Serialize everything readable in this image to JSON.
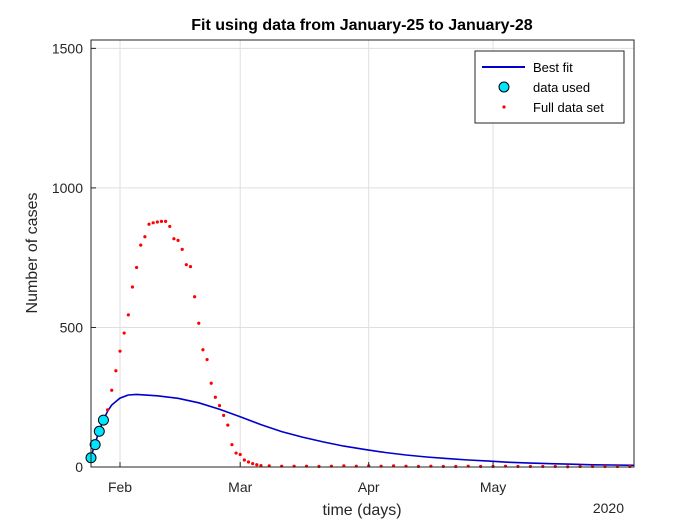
{
  "chart_data": {
    "type": "line",
    "title": "Fit using data from January-25 to January-28",
    "xlabel": "time (days)",
    "ylabel": "Number of cases",
    "year_label": "2020",
    "xlim": [
      "2020-01-25",
      "2020-06-04"
    ],
    "ylim": [
      0,
      1530
    ],
    "x_ticks": [
      {
        "date": "2020-02-01",
        "label": "Feb"
      },
      {
        "date": "2020-03-01",
        "label": "Mar"
      },
      {
        "date": "2020-04-01",
        "label": "Apr"
      },
      {
        "date": "2020-05-01",
        "label": "May"
      }
    ],
    "y_ticks": [
      0,
      500,
      1000,
      1500
    ],
    "grid": true,
    "legend_position": "top-right",
    "colors": {
      "fit": "#0000cc",
      "used_fill": "#00e5ff",
      "used_edge": "#000000",
      "full": "#ff0000"
    },
    "series": [
      {
        "name": "Best fit",
        "style": "line",
        "x": [
          "2020-01-25",
          "2020-01-26",
          "2020-01-27",
          "2020-01-28",
          "2020-01-29",
          "2020-01-30",
          "2020-02-01",
          "2020-02-03",
          "2020-02-05",
          "2020-02-10",
          "2020-02-15",
          "2020-02-20",
          "2020-02-25",
          "2020-03-01",
          "2020-03-06",
          "2020-03-11",
          "2020-03-16",
          "2020-03-21",
          "2020-03-26",
          "2020-03-31",
          "2020-04-05",
          "2020-04-10",
          "2020-04-15",
          "2020-04-20",
          "2020-04-25",
          "2020-04-30",
          "2020-05-05",
          "2020-05-10",
          "2020-05-15",
          "2020-05-20",
          "2020-05-25",
          "2020-05-30",
          "2020-06-04"
        ],
        "values": [
          35,
          85,
          130,
          168,
          200,
          222,
          247,
          258,
          260,
          255,
          246,
          230,
          207,
          180,
          152,
          127,
          107,
          90,
          75,
          63,
          52,
          43,
          36,
          30,
          25,
          21,
          17,
          14,
          12,
          10,
          8,
          7,
          6
        ]
      },
      {
        "name": "data used",
        "style": "marker",
        "x": [
          "2020-01-25",
          "2020-01-26",
          "2020-01-27",
          "2020-01-28"
        ],
        "values": [
          33,
          80,
          128,
          168
        ]
      },
      {
        "name": "Full data set",
        "style": "dots",
        "x": [
          "2020-01-25",
          "2020-01-26",
          "2020-01-27",
          "2020-01-28",
          "2020-01-29",
          "2020-01-30",
          "2020-01-31",
          "2020-02-01",
          "2020-02-02",
          "2020-02-03",
          "2020-02-04",
          "2020-02-05",
          "2020-02-06",
          "2020-02-07",
          "2020-02-08",
          "2020-02-09",
          "2020-02-10",
          "2020-02-11",
          "2020-02-12",
          "2020-02-13",
          "2020-02-14",
          "2020-02-15",
          "2020-02-16",
          "2020-02-17",
          "2020-02-18",
          "2020-02-19",
          "2020-02-20",
          "2020-02-21",
          "2020-02-22",
          "2020-02-23",
          "2020-02-24",
          "2020-02-25",
          "2020-02-26",
          "2020-02-27",
          "2020-02-28",
          "2020-02-29",
          "2020-03-01",
          "2020-03-02",
          "2020-03-03",
          "2020-03-04",
          "2020-03-05",
          "2020-03-06",
          "2020-03-08",
          "2020-03-11",
          "2020-03-14",
          "2020-03-17",
          "2020-03-20",
          "2020-03-23",
          "2020-03-26",
          "2020-03-29",
          "2020-04-01",
          "2020-04-04",
          "2020-04-07",
          "2020-04-10",
          "2020-04-13",
          "2020-04-16",
          "2020-04-19",
          "2020-04-22",
          "2020-04-25",
          "2020-04-28",
          "2020-05-01",
          "2020-05-04",
          "2020-05-07",
          "2020-05-10",
          "2020-05-13",
          "2020-05-16",
          "2020-05-19",
          "2020-05-22",
          "2020-05-25",
          "2020-05-28",
          "2020-05-31",
          "2020-06-03"
        ],
        "values": [
          35,
          80,
          130,
          168,
          205,
          275,
          345,
          415,
          480,
          545,
          645,
          715,
          795,
          825,
          870,
          875,
          878,
          880,
          880,
          862,
          818,
          812,
          780,
          725,
          718,
          610,
          515,
          420,
          385,
          300,
          250,
          220,
          185,
          150,
          80,
          50,
          45,
          25,
          18,
          12,
          8,
          5,
          4,
          3,
          3,
          3,
          2,
          3,
          4,
          3,
          4,
          3,
          4,
          3,
          2,
          3,
          2,
          2,
          3,
          2,
          2,
          3,
          2,
          2,
          2,
          2,
          1,
          2,
          2,
          2,
          2,
          2
        ]
      }
    ]
  }
}
